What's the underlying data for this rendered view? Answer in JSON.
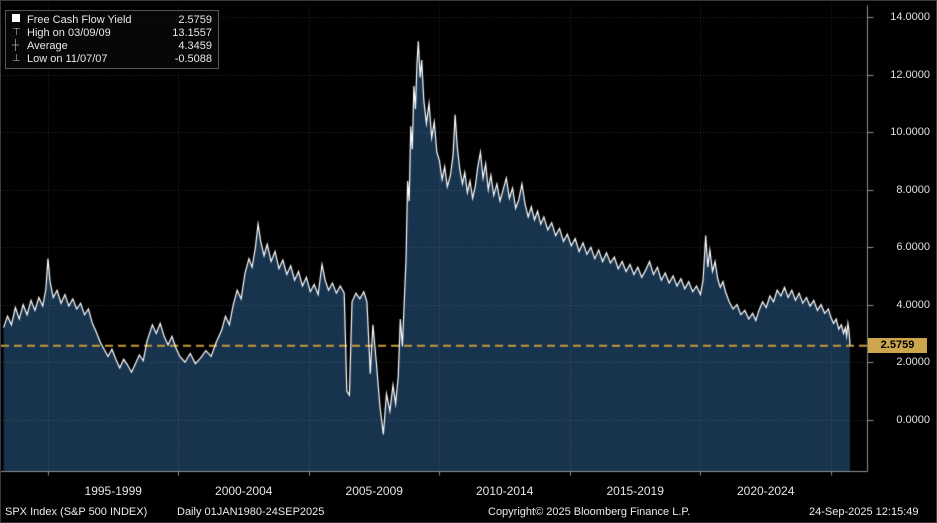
{
  "legend": {
    "series": {
      "label": "Free Cash Flow Yield",
      "value": "2.5759"
    },
    "high": {
      "label": "High on 03/09/09",
      "value": "13.1557"
    },
    "average": {
      "label": "Average",
      "value": "4.3459"
    },
    "low": {
      "label": "Low on 11/07/07",
      "value": "-0.5088"
    }
  },
  "status": {
    "instrument": "SPX Index (S&P 500 INDEX)",
    "periodicity": "Daily 01JAN1980-24SEP2025",
    "copyright": "Copyright© 2025 Bloomberg Finance L.P.",
    "datetime": "24-Sep-2025 12:15:49"
  },
  "chart_data": {
    "type": "area",
    "title": "Free Cash Flow Yield",
    "last_value": 2.5759,
    "last_value_label": "2.5759",
    "high": {
      "date": "03/09/09",
      "value": 13.1557
    },
    "average": 4.3459,
    "low": {
      "date": "11/07/07",
      "value": -0.5088
    },
    "ylim": [
      -1.8,
      14.4
    ],
    "xlim": [
      1993.2,
      2026.4
    ],
    "yticks": [
      0,
      2,
      4,
      6,
      8,
      10,
      12,
      14
    ],
    "ytick_labels": [
      "0.0000",
      "2.0000",
      "4.0000",
      "6.0000",
      "8.0000",
      "10.0000",
      "12.0000",
      "14.0000"
    ],
    "x_gridline_years": [
      1995,
      2000,
      2005,
      2010,
      2015,
      2020,
      2025
    ],
    "xtick_labels": [
      {
        "label": "1995-1999",
        "center": 1997.5
      },
      {
        "label": "2000-2004",
        "center": 2002.5
      },
      {
        "label": "2005-2009",
        "center": 2007.5
      },
      {
        "label": "2010-2014",
        "center": 2012.5
      },
      {
        "label": "2015-2019",
        "center": 2017.5
      },
      {
        "label": "2020-2024",
        "center": 2022.5
      }
    ],
    "grid": true,
    "legend_position": "top-left",
    "colors": {
      "bg": "#000000",
      "fill": "#17334d",
      "line": "#ffffff",
      "grid": "rgba(255,255,255,0.17)",
      "threshold": "#c79b3b",
      "axis": "#8f8f8f",
      "badge_bg": "#cda54c",
      "badge_text": "#000000"
    },
    "series": [
      [
        1993.3,
        3.2
      ],
      [
        1993.45,
        3.6
      ],
      [
        1993.6,
        3.3
      ],
      [
        1993.75,
        3.9
      ],
      [
        1993.9,
        3.5
      ],
      [
        1994.05,
        4.0
      ],
      [
        1994.2,
        3.65
      ],
      [
        1994.35,
        4.15
      ],
      [
        1994.5,
        3.8
      ],
      [
        1994.65,
        4.25
      ],
      [
        1994.8,
        3.95
      ],
      [
        1994.92,
        4.55
      ],
      [
        1995.0,
        5.6
      ],
      [
        1995.08,
        4.8
      ],
      [
        1995.2,
        4.25
      ],
      [
        1995.35,
        4.5
      ],
      [
        1995.5,
        4.05
      ],
      [
        1995.65,
        4.35
      ],
      [
        1995.8,
        3.95
      ],
      [
        1995.95,
        4.2
      ],
      [
        1996.1,
        3.85
      ],
      [
        1996.25,
        4.05
      ],
      [
        1996.4,
        3.65
      ],
      [
        1996.55,
        3.85
      ],
      [
        1996.7,
        3.35
      ],
      [
        1996.85,
        3.05
      ],
      [
        1997.0,
        2.7
      ],
      [
        1997.15,
        2.45
      ],
      [
        1997.3,
        2.2
      ],
      [
        1997.45,
        2.45
      ],
      [
        1997.6,
        2.1
      ],
      [
        1997.75,
        1.8
      ],
      [
        1997.9,
        2.1
      ],
      [
        1998.05,
        1.9
      ],
      [
        1998.2,
        1.65
      ],
      [
        1998.35,
        1.95
      ],
      [
        1998.5,
        2.25
      ],
      [
        1998.65,
        2.05
      ],
      [
        1998.8,
        2.75
      ],
      [
        1999.0,
        3.3
      ],
      [
        1999.15,
        3.0
      ],
      [
        1999.3,
        3.35
      ],
      [
        1999.45,
        2.9
      ],
      [
        1999.6,
        2.6
      ],
      [
        1999.75,
        2.9
      ],
      [
        1999.9,
        2.5
      ],
      [
        2000.05,
        2.2
      ],
      [
        2000.25,
        2.0
      ],
      [
        2000.45,
        2.3
      ],
      [
        2000.65,
        1.95
      ],
      [
        2000.85,
        2.15
      ],
      [
        2001.05,
        2.4
      ],
      [
        2001.25,
        2.2
      ],
      [
        2001.45,
        2.7
      ],
      [
        2001.65,
        3.1
      ],
      [
        2001.8,
        3.6
      ],
      [
        2001.95,
        3.3
      ],
      [
        2002.1,
        4.0
      ],
      [
        2002.25,
        4.5
      ],
      [
        2002.4,
        4.2
      ],
      [
        2002.55,
        5.1
      ],
      [
        2002.7,
        5.6
      ],
      [
        2002.82,
        5.3
      ],
      [
        2002.95,
        6.0
      ],
      [
        2003.05,
        6.8
      ],
      [
        2003.15,
        6.2
      ],
      [
        2003.28,
        5.7
      ],
      [
        2003.4,
        6.1
      ],
      [
        2003.55,
        5.5
      ],
      [
        2003.7,
        5.85
      ],
      [
        2003.85,
        5.25
      ],
      [
        2004.0,
        5.55
      ],
      [
        2004.15,
        5.05
      ],
      [
        2004.3,
        5.35
      ],
      [
        2004.45,
        4.85
      ],
      [
        2004.6,
        5.15
      ],
      [
        2004.75,
        4.65
      ],
      [
        2004.9,
        4.95
      ],
      [
        2005.05,
        4.45
      ],
      [
        2005.2,
        4.7
      ],
      [
        2005.35,
        4.35
      ],
      [
        2005.5,
        5.4
      ],
      [
        2005.62,
        4.85
      ],
      [
        2005.75,
        4.5
      ],
      [
        2005.9,
        4.75
      ],
      [
        2006.05,
        4.4
      ],
      [
        2006.2,
        4.65
      ],
      [
        2006.35,
        4.4
      ],
      [
        2006.45,
        1.0
      ],
      [
        2006.55,
        0.85
      ],
      [
        2006.65,
        4.1
      ],
      [
        2006.8,
        4.4
      ],
      [
        2006.95,
        4.2
      ],
      [
        2007.1,
        4.45
      ],
      [
        2007.22,
        4.1
      ],
      [
        2007.35,
        1.6
      ],
      [
        2007.45,
        3.3
      ],
      [
        2007.58,
        2.0
      ],
      [
        2007.72,
        0.45
      ],
      [
        2007.85,
        -0.51
      ],
      [
        2007.97,
        0.9
      ],
      [
        2008.1,
        0.3
      ],
      [
        2008.22,
        1.2
      ],
      [
        2008.32,
        0.55
      ],
      [
        2008.42,
        1.5
      ],
      [
        2008.5,
        3.5
      ],
      [
        2008.58,
        2.55
      ],
      [
        2008.66,
        4.3
      ],
      [
        2008.72,
        5.6
      ],
      [
        2008.78,
        8.3
      ],
      [
        2008.84,
        7.6
      ],
      [
        2008.9,
        10.2
      ],
      [
        2008.96,
        9.4
      ],
      [
        2009.02,
        11.6
      ],
      [
        2009.08,
        10.8
      ],
      [
        2009.14,
        12.4
      ],
      [
        2009.19,
        13.16
      ],
      [
        2009.26,
        11.9
      ],
      [
        2009.32,
        12.5
      ],
      [
        2009.4,
        11.1
      ],
      [
        2009.5,
        10.3
      ],
      [
        2009.6,
        11.0
      ],
      [
        2009.7,
        9.8
      ],
      [
        2009.8,
        10.35
      ],
      [
        2009.9,
        9.3
      ],
      [
        2010.0,
        9.0
      ],
      [
        2010.1,
        8.35
      ],
      [
        2010.2,
        8.8
      ],
      [
        2010.3,
        8.1
      ],
      [
        2010.42,
        8.5
      ],
      [
        2010.52,
        9.2
      ],
      [
        2010.6,
        10.6
      ],
      [
        2010.68,
        9.5
      ],
      [
        2010.78,
        8.7
      ],
      [
        2010.88,
        8.2
      ],
      [
        2010.97,
        8.6
      ],
      [
        2011.07,
        7.9
      ],
      [
        2011.17,
        8.3
      ],
      [
        2011.27,
        7.7
      ],
      [
        2011.37,
        8.1
      ],
      [
        2011.47,
        8.8
      ],
      [
        2011.57,
        9.3
      ],
      [
        2011.67,
        8.4
      ],
      [
        2011.77,
        8.9
      ],
      [
        2011.87,
        8.0
      ],
      [
        2011.97,
        8.5
      ],
      [
        2012.08,
        7.8
      ],
      [
        2012.2,
        8.2
      ],
      [
        2012.32,
        7.6
      ],
      [
        2012.44,
        8.0
      ],
      [
        2012.56,
        8.4
      ],
      [
        2012.68,
        7.7
      ],
      [
        2012.8,
        8.05
      ],
      [
        2012.92,
        7.35
      ],
      [
        2013.04,
        7.65
      ],
      [
        2013.16,
        8.2
      ],
      [
        2013.28,
        7.5
      ],
      [
        2013.4,
        7.05
      ],
      [
        2013.52,
        7.4
      ],
      [
        2013.64,
        6.95
      ],
      [
        2013.76,
        7.25
      ],
      [
        2013.88,
        6.8
      ],
      [
        2014.0,
        7.05
      ],
      [
        2014.15,
        6.6
      ],
      [
        2014.3,
        6.85
      ],
      [
        2014.45,
        6.4
      ],
      [
        2014.6,
        6.65
      ],
      [
        2014.75,
        6.2
      ],
      [
        2014.9,
        6.45
      ],
      [
        2015.05,
        6.05
      ],
      [
        2015.2,
        6.3
      ],
      [
        2015.35,
        5.85
      ],
      [
        2015.5,
        6.15
      ],
      [
        2015.65,
        5.75
      ],
      [
        2015.8,
        6.0
      ],
      [
        2015.95,
        5.6
      ],
      [
        2016.1,
        5.9
      ],
      [
        2016.25,
        5.5
      ],
      [
        2016.4,
        5.8
      ],
      [
        2016.55,
        5.45
      ],
      [
        2016.7,
        5.65
      ],
      [
        2016.85,
        5.25
      ],
      [
        2017.0,
        5.5
      ],
      [
        2017.15,
        5.15
      ],
      [
        2017.3,
        5.4
      ],
      [
        2017.45,
        5.05
      ],
      [
        2017.6,
        5.3
      ],
      [
        2017.75,
        4.95
      ],
      [
        2017.9,
        5.2
      ],
      [
        2018.05,
        5.5
      ],
      [
        2018.2,
        5.05
      ],
      [
        2018.35,
        5.3
      ],
      [
        2018.5,
        4.85
      ],
      [
        2018.65,
        5.1
      ],
      [
        2018.8,
        4.75
      ],
      [
        2018.95,
        5.0
      ],
      [
        2019.1,
        4.65
      ],
      [
        2019.25,
        4.9
      ],
      [
        2019.4,
        4.55
      ],
      [
        2019.55,
        4.8
      ],
      [
        2019.7,
        4.45
      ],
      [
        2019.85,
        4.65
      ],
      [
        2020.0,
        4.35
      ],
      [
        2020.1,
        4.85
      ],
      [
        2020.2,
        6.4
      ],
      [
        2020.28,
        5.3
      ],
      [
        2020.36,
        5.9
      ],
      [
        2020.46,
        5.15
      ],
      [
        2020.56,
        5.5
      ],
      [
        2020.66,
        4.9
      ],
      [
        2020.76,
        4.6
      ],
      [
        2020.86,
        4.8
      ],
      [
        2020.96,
        4.45
      ],
      [
        2021.1,
        4.1
      ],
      [
        2021.25,
        3.85
      ],
      [
        2021.4,
        4.0
      ],
      [
        2021.55,
        3.65
      ],
      [
        2021.7,
        3.8
      ],
      [
        2021.85,
        3.5
      ],
      [
        2022.0,
        3.7
      ],
      [
        2022.12,
        3.45
      ],
      [
        2022.24,
        3.8
      ],
      [
        2022.38,
        4.1
      ],
      [
        2022.52,
        3.9
      ],
      [
        2022.66,
        4.3
      ],
      [
        2022.8,
        4.1
      ],
      [
        2022.94,
        4.5
      ],
      [
        2023.08,
        4.3
      ],
      [
        2023.22,
        4.6
      ],
      [
        2023.36,
        4.25
      ],
      [
        2023.5,
        4.5
      ],
      [
        2023.64,
        4.15
      ],
      [
        2023.78,
        4.4
      ],
      [
        2023.92,
        4.05
      ],
      [
        2024.06,
        4.25
      ],
      [
        2024.2,
        3.95
      ],
      [
        2024.34,
        4.15
      ],
      [
        2024.48,
        3.8
      ],
      [
        2024.62,
        4.0
      ],
      [
        2024.76,
        3.7
      ],
      [
        2024.9,
        3.85
      ],
      [
        2025.0,
        3.55
      ],
      [
        2025.1,
        3.35
      ],
      [
        2025.2,
        3.5
      ],
      [
        2025.3,
        3.15
      ],
      [
        2025.4,
        3.3
      ],
      [
        2025.48,
        3.0
      ],
      [
        2025.55,
        3.2
      ],
      [
        2025.6,
        2.9
      ],
      [
        2025.65,
        3.35
      ],
      [
        2025.69,
        3.1
      ],
      [
        2025.72,
        2.75
      ],
      [
        2025.73,
        2.5759
      ]
    ]
  }
}
